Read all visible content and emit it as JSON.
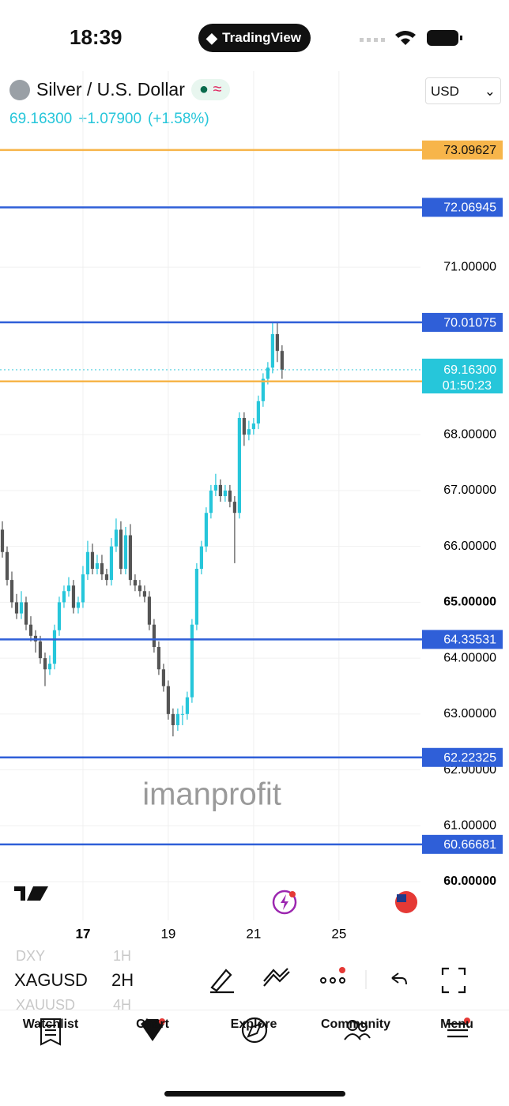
{
  "status_bar": {
    "time": "18:39",
    "app": "TradingView"
  },
  "header": {
    "symbol_name": "Silver / U.S. Dollar",
    "price": "69.16300",
    "change": "+1.07900",
    "change_pct": "(+1.58%)",
    "currency": "USD"
  },
  "chart_data": {
    "type": "candlestick",
    "watermark": "imanprofit",
    "up_color": "#26c6da",
    "down_color": "#555555",
    "open": [
      66.3,
      65.9,
      65.4,
      65.0,
      64.8,
      65.0,
      64.6,
      64.4,
      64.3,
      64.0,
      63.8,
      63.9,
      64.5,
      65.0,
      65.2,
      65.3,
      64.9,
      65.0,
      65.5,
      65.9,
      65.6,
      65.7,
      65.5,
      65.4,
      66.0,
      66.3,
      65.6,
      66.2,
      65.4,
      65.3,
      65.2,
      65.1,
      64.6,
      64.2,
      63.8,
      63.5,
      63.0,
      62.8,
      63.0,
      63.0,
      63.3,
      64.6,
      65.6,
      66.0,
      66.6,
      67.0,
      67.1,
      66.9,
      67.0,
      66.8,
      66.6,
      68.3,
      68.0,
      68.1,
      68.2,
      68.6,
      69.0,
      69.2,
      69.8,
      69.5
    ],
    "high": [
      66.45,
      66.0,
      65.55,
      65.15,
      65.2,
      65.1,
      64.75,
      64.5,
      64.4,
      64.1,
      64.05,
      64.6,
      65.1,
      65.3,
      65.45,
      65.4,
      65.1,
      65.65,
      66.1,
      66.05,
      65.85,
      65.85,
      65.6,
      66.15,
      66.5,
      66.45,
      66.35,
      66.4,
      65.5,
      65.4,
      65.3,
      65.2,
      64.7,
      64.3,
      63.9,
      63.6,
      63.1,
      63.1,
      63.15,
      63.4,
      64.7,
      65.7,
      66.1,
      66.7,
      67.1,
      67.3,
      67.2,
      67.1,
      67.1,
      66.9,
      68.4,
      68.4,
      68.25,
      68.3,
      68.7,
      69.1,
      69.3,
      70.01,
      70.0,
      69.6
    ],
    "low": [
      65.8,
      65.3,
      64.9,
      64.7,
      64.7,
      64.5,
      64.3,
      64.1,
      63.9,
      63.5,
      63.7,
      63.8,
      64.4,
      64.9,
      65.1,
      64.8,
      64.8,
      64.9,
      65.4,
      65.5,
      65.5,
      65.4,
      65.3,
      65.3,
      65.9,
      65.5,
      65.5,
      65.3,
      65.2,
      65.1,
      65.0,
      64.5,
      64.1,
      63.7,
      63.4,
      62.9,
      62.6,
      62.7,
      62.8,
      62.9,
      63.2,
      64.5,
      65.5,
      65.9,
      66.5,
      66.9,
      66.8,
      66.8,
      66.7,
      65.7,
      66.5,
      67.8,
      67.9,
      68.0,
      68.1,
      68.5,
      68.9,
      69.1,
      69.3,
      69.0
    ],
    "close": [
      65.9,
      65.4,
      65.0,
      64.8,
      65.0,
      64.6,
      64.4,
      64.3,
      64.0,
      63.8,
      63.9,
      64.5,
      65.0,
      65.2,
      65.3,
      64.9,
      65.0,
      65.5,
      65.9,
      65.6,
      65.7,
      65.5,
      65.4,
      66.0,
      66.3,
      65.6,
      66.2,
      65.4,
      65.3,
      65.2,
      65.1,
      64.6,
      64.2,
      63.8,
      63.5,
      63.0,
      62.8,
      63.0,
      63.0,
      63.3,
      64.6,
      65.6,
      66.0,
      66.6,
      67.0,
      67.1,
      66.9,
      67.0,
      66.8,
      66.6,
      68.3,
      68.0,
      68.1,
      68.2,
      68.6,
      69.0,
      69.2,
      69.8,
      69.5,
      69.163
    ],
    "xlim": [
      -0.5,
      88.2
    ],
    "xticks": [
      17,
      {
        "value": 35,
        "label": "19"
      },
      {
        "value": 53,
        "label": "21"
      },
      {
        "value": 71,
        "label": "25"
      }
    ],
    "ylim": [
      59.307,
      74.508
    ],
    "yticks": [
      {
        "value": 60,
        "label": "60.00000"
      },
      {
        "value": 61,
        "label": "61.00000"
      },
      {
        "value": 62,
        "label": "62.00000"
      },
      {
        "value": 63,
        "label": "63.00000"
      },
      {
        "value": 64,
        "label": "64.00000"
      },
      {
        "value": 65,
        "label": "65.00000"
      },
      {
        "value": 66,
        "label": "66.00000"
      },
      {
        "value": 67,
        "label": "67.00000"
      },
      {
        "value": 68,
        "label": "68.00000"
      },
      {
        "value": 71,
        "label": "71.00000"
      }
    ],
    "grid": true,
    "levels": [
      {
        "value": 73.09627,
        "color": "#f7b54a"
      },
      {
        "value": 72.06945,
        "color": "#2f5fd8"
      },
      {
        "value": 70.01075,
        "color": "#2f5fd8"
      },
      {
        "value": 68.95389,
        "color": "#f7b54a"
      },
      {
        "value": 64.33531,
        "color": "#2f5fd8"
      },
      {
        "value": 62.22325,
        "color": "#2f5fd8"
      },
      {
        "value": 60.66681,
        "color": "#2f5fd8"
      }
    ],
    "last_price": {
      "value": 69.163,
      "value_label": "69.16300",
      "countdown": "01:50:23",
      "color": "#26c6da"
    }
  },
  "toolbar": {
    "symbols": [
      "DXY",
      "XAGUSD",
      "XAUUSD"
    ],
    "intervals": [
      "1H",
      "2H",
      "4H"
    ]
  },
  "nav": [
    "Watchlist",
    "Chart",
    "Explore",
    "Community",
    "Menu"
  ]
}
